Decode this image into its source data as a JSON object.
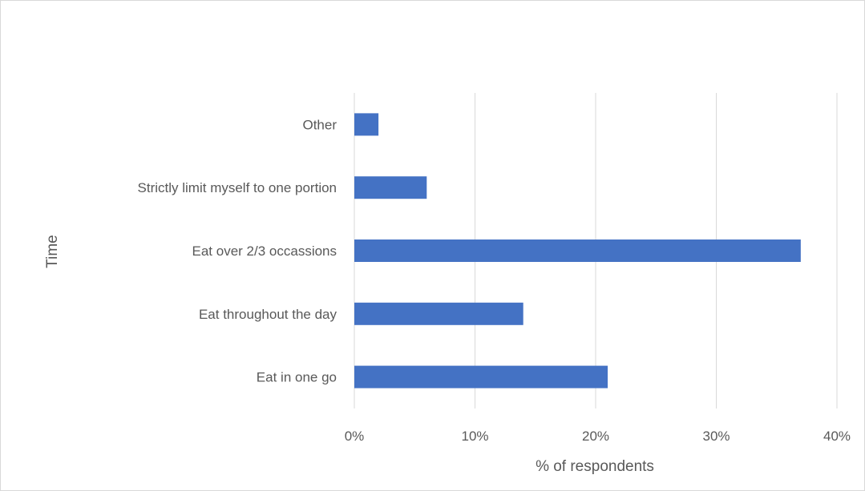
{
  "chart_data": {
    "type": "bar",
    "orientation": "horizontal",
    "categories": [
      "Other",
      "Strictly limit myself to one portion",
      "Eat over 2/3 occassions",
      "Eat throughout the day",
      "Eat in one go"
    ],
    "values": [
      2,
      6,
      37,
      14,
      21
    ],
    "xlabel": "% of respondents",
    "ylabel": "Time",
    "xlim": [
      0,
      40
    ],
    "xticks": [
      0,
      10,
      20,
      30,
      40
    ],
    "xtick_labels": [
      "0%",
      "10%",
      "20%",
      "30%",
      "40%"
    ],
    "grid": "vertical",
    "legend": "none",
    "bar_color": "#4472C4",
    "grid_color": "#d9d9d9",
    "text_color": "#595959"
  }
}
